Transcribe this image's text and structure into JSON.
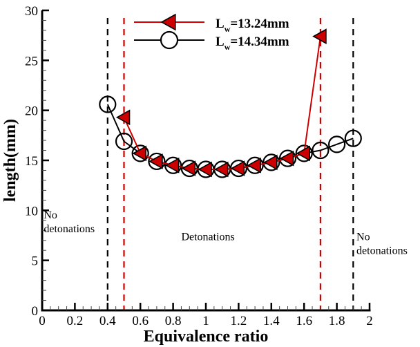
{
  "chart_data": {
    "type": "line",
    "title": "",
    "xlabel": "Equivalence ratio",
    "ylabel": "length(mm)",
    "xlim": [
      0,
      2
    ],
    "ylim": [
      0,
      30
    ],
    "x_ticks": [
      0,
      0.2,
      0.4,
      0.6,
      0.8,
      1,
      1.2,
      1.4,
      1.6,
      1.8,
      2
    ],
    "x_tick_labels": [
      "0",
      "0.2",
      "0.4",
      "0.6",
      "0.8",
      "1",
      "1.2",
      "1.4",
      "1.6",
      "1.8",
      "2"
    ],
    "x_minor_step": 0.05,
    "y_ticks": [
      0,
      5,
      10,
      15,
      20,
      25,
      30
    ],
    "y_tick_labels": [
      "0",
      "5",
      "10",
      "15",
      "20",
      "25",
      "30"
    ],
    "y_minor_step": 1,
    "grid": false,
    "legend_position": "top-center",
    "series": [
      {
        "name": "L_w=13.24mm",
        "legend_main": "L",
        "legend_sub": "w",
        "legend_rest": "=13.24mm",
        "color": "#cc0000",
        "marker": "left-triangle",
        "marker_fill": "#cc0000",
        "x": [
          0.5,
          0.6,
          0.7,
          0.8,
          0.9,
          1.0,
          1.1,
          1.2,
          1.3,
          1.4,
          1.5,
          1.6,
          1.7
        ],
        "y": [
          19.3,
          15.7,
          14.9,
          14.5,
          14.2,
          14.1,
          14.1,
          14.2,
          14.5,
          14.8,
          15.2,
          15.7,
          27.4
        ]
      },
      {
        "name": "L_w=14.34mm",
        "legend_main": "L",
        "legend_sub": "w",
        "legend_rest": "=14.34mm",
        "color": "#000000",
        "marker": "circle",
        "marker_fill": "none",
        "x": [
          0.4,
          0.5,
          0.6,
          0.7,
          0.8,
          0.9,
          1.0,
          1.1,
          1.2,
          1.3,
          1.4,
          1.5,
          1.6,
          1.7,
          1.8,
          1.9
        ],
        "y": [
          20.6,
          16.9,
          15.7,
          14.9,
          14.5,
          14.2,
          14.1,
          14.1,
          14.2,
          14.5,
          14.8,
          15.2,
          15.7,
          16.0,
          16.6,
          17.2
        ]
      }
    ],
    "vertical_lines": [
      {
        "x": 0.4,
        "color": "#000000",
        "style": "dashed"
      },
      {
        "x": 0.5,
        "color": "#cc0000",
        "style": "dashed"
      },
      {
        "x": 1.7,
        "color": "#cc0000",
        "style": "dashed"
      },
      {
        "x": 1.9,
        "color": "#000000",
        "style": "dashed"
      }
    ],
    "annotations": [
      {
        "id": "left",
        "lines": [
          "No",
          "detonations"
        ],
        "x": 0.01,
        "y": 9.2
      },
      {
        "id": "center",
        "lines": [
          "Detonations"
        ],
        "x": 0.85,
        "y": 7.0
      },
      {
        "id": "right",
        "lines": [
          "No",
          "detonations"
        ],
        "x": 1.92,
        "y": 7.0
      }
    ]
  }
}
